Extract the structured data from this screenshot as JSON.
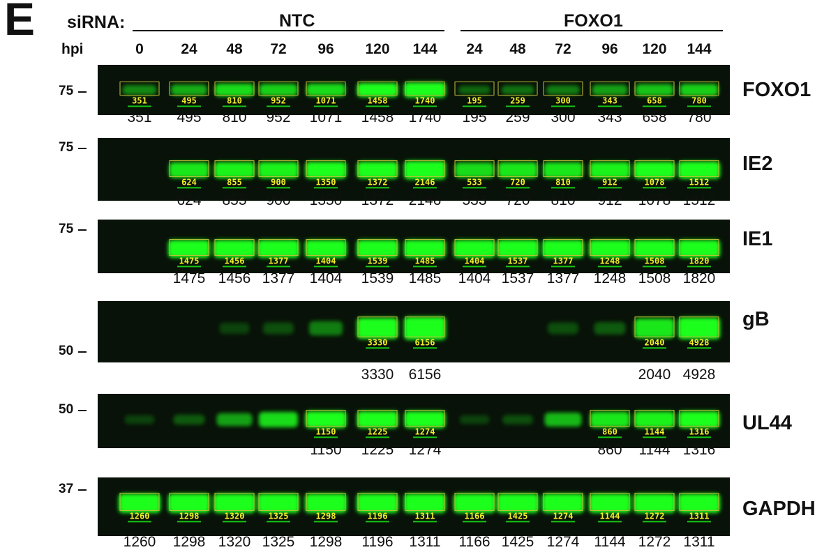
{
  "panel_letter": "E",
  "header": {
    "sirna_label": "siRNA:",
    "group_ntc": "NTC",
    "group_foxo1": "FOXO1",
    "hpi_label": "hpi",
    "hpi": [
      "0",
      "24",
      "48",
      "72",
      "96",
      "120",
      "144",
      "24",
      "48",
      "72",
      "96",
      "120",
      "144"
    ]
  },
  "colors": {
    "blot_bg": "#081208",
    "band": "#1aff1a",
    "box": "#c9c23a",
    "label": "#f3ef2a",
    "underline": "#14c814"
  },
  "blots": [
    {
      "name": "FOXO1",
      "mw": [
        {
          "label": "75"
        }
      ],
      "box_values": [
        "351",
        "495",
        "810",
        "952",
        "1071",
        "1458",
        "1740",
        "195",
        "259",
        "300",
        "343",
        "658",
        "780"
      ],
      "intensity": [
        0.35,
        0.5,
        0.7,
        0.65,
        0.7,
        0.85,
        1.0,
        0.2,
        0.25,
        0.3,
        0.45,
        0.6,
        0.65
      ],
      "quant": [
        "351",
        "495",
        "810",
        "952",
        "1071",
        "1458",
        "1740",
        "195",
        "259",
        "300",
        "343",
        "658",
        "780"
      ]
    },
    {
      "name": "IE2",
      "mw": [
        {
          "label": "75"
        }
      ],
      "box_values": [
        "",
        "624",
        "855",
        "900",
        "1350",
        "1372",
        "2146",
        "533",
        "720",
        "810",
        "912",
        "1078",
        "1512"
      ],
      "intensity": [
        0,
        0.75,
        0.8,
        0.8,
        0.85,
        0.85,
        1.0,
        0.7,
        0.75,
        0.75,
        0.8,
        0.85,
        0.9
      ],
      "quant": [
        "",
        "624",
        "855",
        "900",
        "1350",
        "1372",
        "2146",
        "533",
        "720",
        "810",
        "912",
        "1078",
        "1512"
      ]
    },
    {
      "name": "IE1",
      "mw": [
        {
          "label": "75"
        }
      ],
      "box_values": [
        "",
        "1475",
        "1456",
        "1377",
        "1404",
        "1539",
        "1485",
        "1404",
        "1537",
        "1377",
        "1248",
        "1508",
        "1820"
      ],
      "intensity": [
        0,
        0.95,
        0.95,
        0.95,
        0.95,
        0.95,
        0.95,
        0.95,
        0.95,
        0.95,
        0.95,
        0.95,
        0.95
      ],
      "quant": [
        "",
        "1475",
        "1456",
        "1377",
        "1404",
        "1539",
        "1485",
        "1404",
        "1537",
        "1377",
        "1248",
        "1508",
        "1820"
      ]
    },
    {
      "name": "gB",
      "mw": [
        {
          "label": "50"
        }
      ],
      "box_values": [
        "",
        "",
        "",
        "",
        "",
        "3330",
        "6156",
        "",
        "",
        "",
        "",
        "2040",
        "4928"
      ],
      "intensity": [
        0,
        0,
        0.05,
        0.1,
        0.3,
        0.85,
        1.0,
        0,
        0,
        0.1,
        0.15,
        0.75,
        0.9
      ],
      "quant": [
        "",
        "",
        "",
        "",
        "",
        "3330",
        "6156",
        "",
        "",
        "",
        "",
        "2040",
        "4928"
      ]
    },
    {
      "name": "UL44",
      "mw": [
        {
          "label": "50"
        }
      ],
      "box_values": [
        "",
        "",
        "",
        "",
        "1150",
        "1225",
        "1274",
        "",
        "",
        "",
        "860",
        "1144",
        "1316"
      ],
      "intensity": [
        0.05,
        0.15,
        0.45,
        0.7,
        0.85,
        0.85,
        0.85,
        0.05,
        0.1,
        0.55,
        0.75,
        0.8,
        0.85
      ],
      "quant": [
        "",
        "",
        "",
        "",
        "1150",
        "1225",
        "1274",
        "",
        "",
        "",
        "860",
        "1144",
        "1316"
      ]
    },
    {
      "name": "GAPDH",
      "mw": [
        {
          "label": "37"
        }
      ],
      "box_values": [
        "1260",
        "1298",
        "1320",
        "1325",
        "1298",
        "1196",
        "1311",
        "1166",
        "1425",
        "1274",
        "1144",
        "1272",
        "1311"
      ],
      "intensity": [
        0.95,
        0.95,
        0.95,
        0.95,
        0.95,
        0.95,
        0.95,
        0.95,
        0.95,
        0.95,
        0.95,
        0.95,
        0.95
      ],
      "quant": [
        "1260",
        "1298",
        "1320",
        "1325",
        "1298",
        "1196",
        "1311",
        "1166",
        "1425",
        "1274",
        "1144",
        "1272",
        "1311"
      ]
    }
  ]
}
